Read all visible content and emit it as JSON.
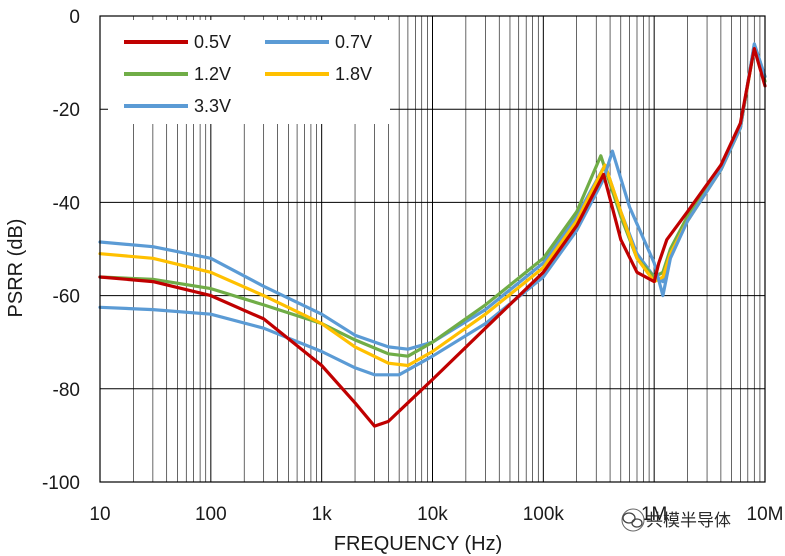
{
  "chart_data": {
    "type": "line",
    "xlabel": "FREQUENCY (Hz)",
    "ylabel": "PSRR (dB)",
    "xscale": "log",
    "xlim": [
      10,
      10000000
    ],
    "ylim": [
      -100,
      0
    ],
    "grid": true,
    "legend_position": "top-left",
    "x_tick_labels": [
      "10",
      "100",
      "1k",
      "10k",
      "100k",
      "1M",
      "10M"
    ],
    "y_tick_labels": [
      "0",
      "-20",
      "-40",
      "-60",
      "-80",
      "-100"
    ],
    "colors": {
      "red": "#c00000",
      "blue": "#5b9bd5",
      "green": "#70ad47",
      "yellow": "#ffc000",
      "grid": "#000000"
    },
    "series": [
      {
        "name": "0.5V",
        "color": "#c00000",
        "x": [
          10,
          30,
          100,
          300,
          1000,
          2000,
          3000,
          4000,
          6000,
          10000,
          30000,
          100000,
          200000,
          350000,
          500000,
          700000,
          1000000,
          1100000,
          1300000,
          2000000,
          4000000,
          6000000,
          8000000,
          10000000
        ],
        "y": [
          -56,
          -57,
          -60,
          -65,
          -75,
          -83,
          -88,
          -87,
          -83,
          -78,
          -67,
          -55,
          -45,
          -34,
          -48,
          -55,
          -57,
          -53,
          -48,
          -42,
          -32,
          -23,
          -7,
          -15
        ]
      },
      {
        "name": "0.7V",
        "color": "#5b9bd5",
        "x": [
          10,
          30,
          100,
          300,
          1000,
          2000,
          3000,
          5000,
          10000,
          30000,
          100000,
          200000,
          350000,
          420000,
          600000,
          1000000,
          1200000,
          1400000,
          2000000,
          4000000,
          6000000,
          8000000,
          10000000
        ],
        "y": [
          -62.5,
          -63,
          -64,
          -67,
          -72,
          -75.5,
          -77,
          -77,
          -73,
          -66,
          -56,
          -46,
          -35,
          -29,
          -41,
          -53,
          -60,
          -52,
          -44,
          -33,
          -24,
          -6,
          -13
        ]
      },
      {
        "name": "1.2V",
        "color": "#70ad47",
        "x": [
          10,
          30,
          100,
          300,
          1000,
          2000,
          4000,
          6000,
          10000,
          30000,
          100000,
          200000,
          330000,
          500000,
          700000,
          1000000,
          1200000,
          1400000,
          2000000,
          4000000,
          6000000,
          8000000,
          10000000
        ],
        "y": [
          -56,
          -56.5,
          -58.5,
          -62,
          -66,
          -69.5,
          -72.5,
          -73,
          -70,
          -62,
          -52,
          -42,
          -30,
          -43,
          -52,
          -56,
          -55,
          -50,
          -43,
          -33,
          -24,
          -6.5,
          -14
        ]
      },
      {
        "name": "1.8V",
        "color": "#ffc000",
        "x": [
          10,
          30,
          100,
          300,
          1000,
          2000,
          4000,
          6000,
          10000,
          30000,
          100000,
          200000,
          360000,
          500000,
          700000,
          1000000,
          1200000,
          1400000,
          2000000,
          4000000,
          6000000,
          8000000,
          10000000
        ],
        "y": [
          -51,
          -52,
          -55,
          -60,
          -66,
          -71,
          -74.5,
          -75,
          -72,
          -64,
          -54,
          -44,
          -32,
          -42,
          -52,
          -57,
          -56,
          -51,
          -44,
          -33,
          -24,
          -6.5,
          -13
        ]
      },
      {
        "name": "3.3V",
        "color": "#5b9bd5",
        "x": [
          10,
          30,
          100,
          300,
          1000,
          2000,
          4000,
          6000,
          10000,
          30000,
          100000,
          200000,
          360000,
          500000,
          700000,
          1000000,
          1200000,
          1400000,
          2000000,
          4000000,
          6000000,
          8000000,
          10000000
        ],
        "y": [
          -48.5,
          -49.5,
          -52,
          -58,
          -64,
          -68.5,
          -71,
          -71.5,
          -70,
          -63,
          -53,
          -43,
          -32,
          -42,
          -51,
          -56,
          -57,
          -51,
          -44,
          -33,
          -24,
          -6,
          -13
        ]
      }
    ]
  },
  "watermark": {
    "text": "共模半导体",
    "icon": "wechat-icon"
  }
}
